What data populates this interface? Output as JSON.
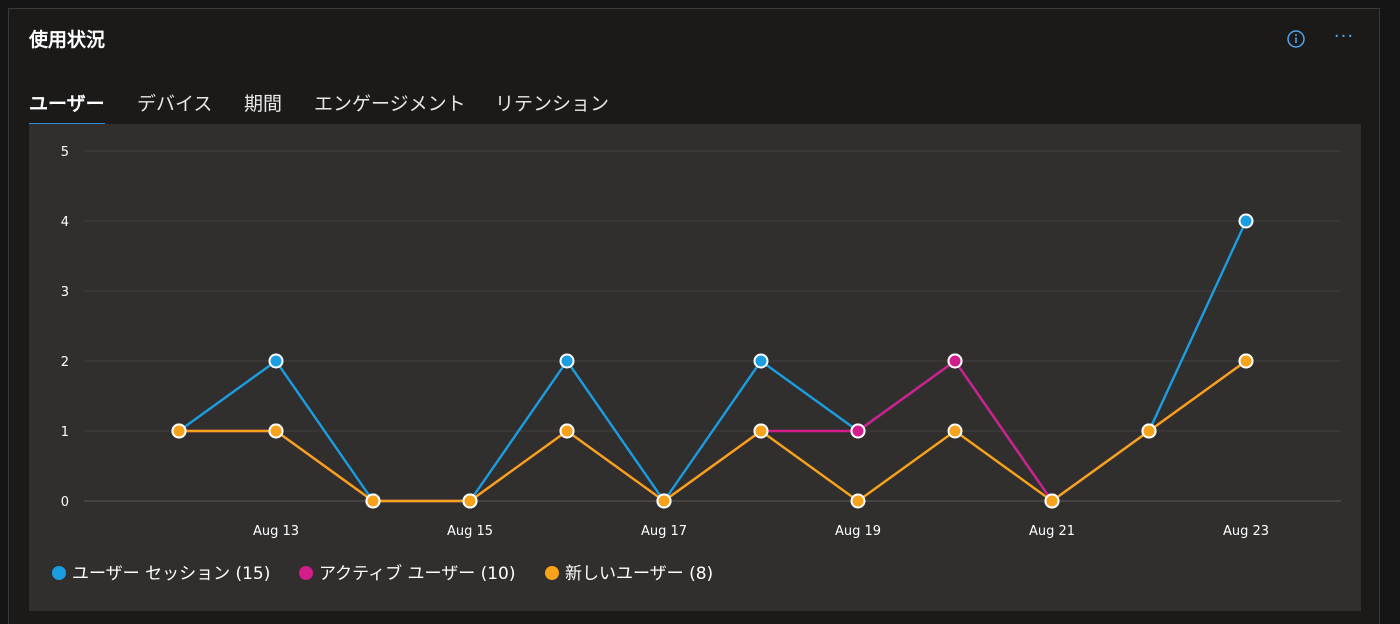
{
  "card": {
    "title": "使用状況",
    "icons": {
      "info": "info-icon",
      "more": "more-icon"
    },
    "more_glyph": "···"
  },
  "tabs": [
    {
      "label": "ユーザー",
      "active": true
    },
    {
      "label": "デバイス",
      "active": false
    },
    {
      "label": "期間",
      "active": false
    },
    {
      "label": "エンゲージメント",
      "active": false
    },
    {
      "label": "リテンション",
      "active": false
    }
  ],
  "colors": {
    "accent": "#2c8edb",
    "sessions": "#1b9de2",
    "active": "#d21d8a",
    "new": "#f7a21b"
  },
  "chart_data": {
    "type": "line",
    "x": [
      "Aug 12",
      "Aug 13",
      "Aug 14",
      "Aug 15",
      "Aug 16",
      "Aug 17",
      "Aug 18",
      "Aug 19",
      "Aug 20",
      "Aug 21",
      "Aug 22",
      "Aug 23"
    ],
    "xticks": [
      "Aug 13",
      "Aug 15",
      "Aug 17",
      "Aug 19",
      "Aug 21",
      "Aug 23"
    ],
    "yticks": [
      0,
      1,
      2,
      3,
      4,
      5
    ],
    "ylim": [
      0,
      5
    ],
    "grid": true,
    "legend_position": "bottom-left",
    "series": [
      {
        "name": "ユーザー セッション",
        "total": 15,
        "color": "#1b9de2",
        "values": [
          1,
          2,
          0,
          0,
          2,
          0,
          2,
          1,
          2,
          0,
          1,
          4
        ]
      },
      {
        "name": "アクティブ ユーザー",
        "total": 10,
        "color": "#d21d8a",
        "values": [
          1,
          1,
          0,
          0,
          1,
          0,
          1,
          1,
          2,
          0,
          1,
          2
        ]
      },
      {
        "name": "新しいユーザー",
        "total": 8,
        "color": "#f7a21b",
        "values": [
          1,
          1,
          0,
          0,
          1,
          0,
          1,
          0,
          1,
          0,
          1,
          2
        ]
      }
    ],
    "legend": [
      "ユーザー セッション (15)",
      "アクティブ ユーザー (10)",
      "新しいユーザー (8)"
    ]
  }
}
